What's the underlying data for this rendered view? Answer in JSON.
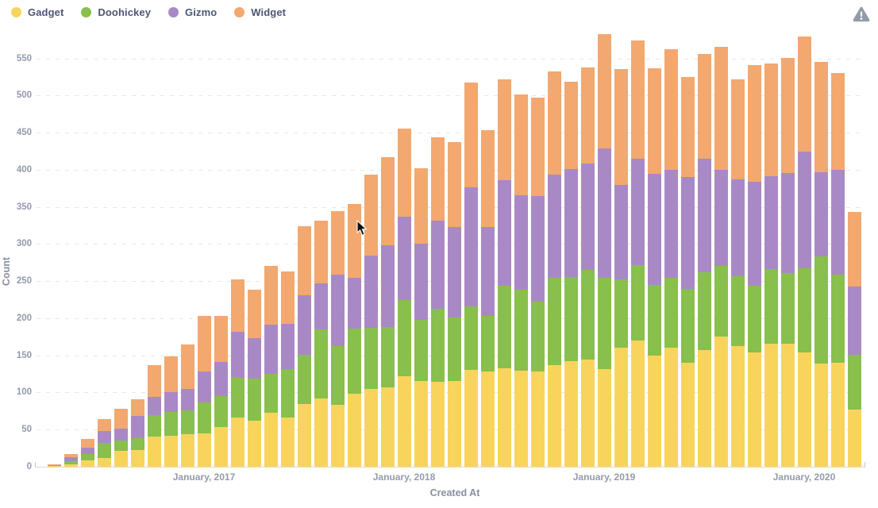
{
  "legend": {
    "items": [
      {
        "label": "Gadget",
        "color": "#F9D45C"
      },
      {
        "label": "Doohickey",
        "color": "#88BF4D"
      },
      {
        "label": "Gizmo",
        "color": "#A989C5"
      },
      {
        "label": "Widget",
        "color": "#F2A86F"
      }
    ]
  },
  "warning": {
    "icon": "alert-triangle",
    "color": "#949AAB"
  },
  "chart_data": {
    "type": "bar",
    "stacked": true,
    "title": "",
    "xlabel": "Created At",
    "ylabel": "Count",
    "grid": "horizontal-dashed",
    "legend_position": "top-left",
    "ylim": [
      0,
      586
    ],
    "y_ticks": [
      0,
      50,
      100,
      150,
      200,
      250,
      300,
      350,
      400,
      450,
      500,
      550
    ],
    "x": [
      "2016-04",
      "2016-05",
      "2016-06",
      "2016-07",
      "2016-08",
      "2016-09",
      "2016-10",
      "2016-11",
      "2016-12",
      "2017-01",
      "2017-02",
      "2017-03",
      "2017-04",
      "2017-05",
      "2017-06",
      "2017-07",
      "2017-08",
      "2017-09",
      "2017-10",
      "2017-11",
      "2017-12",
      "2018-01",
      "2018-02",
      "2018-03",
      "2018-04",
      "2018-05",
      "2018-06",
      "2018-07",
      "2018-08",
      "2018-09",
      "2018-10",
      "2018-11",
      "2018-12",
      "2019-01",
      "2019-02",
      "2019-03",
      "2019-04",
      "2019-05",
      "2019-06",
      "2019-07",
      "2019-08",
      "2019-09",
      "2019-10",
      "2019-11",
      "2019-12",
      "2020-01",
      "2020-02",
      "2020-03",
      "2020-04"
    ],
    "x_tick_labels": [
      {
        "label": "January, 2017",
        "index": 9
      },
      {
        "label": "January, 2018",
        "index": 21
      },
      {
        "label": "January, 2019",
        "index": 33
      },
      {
        "label": "January, 2020",
        "index": 45
      }
    ],
    "series": [
      {
        "name": "Gadget",
        "color": "#F9D45C",
        "values": [
          1,
          3,
          9,
          12,
          21,
          22,
          41,
          42,
          44,
          45,
          53,
          66,
          62,
          73,
          66,
          85,
          92,
          83,
          98,
          105,
          107,
          122,
          116,
          114,
          115,
          130,
          128,
          133,
          129,
          128,
          137,
          142,
          144,
          131,
          160,
          170,
          150,
          160,
          140,
          157,
          175,
          162,
          154,
          166,
          166,
          154,
          139,
          140,
          77
        ]
      },
      {
        "name": "Doohickey",
        "color": "#88BF4D",
        "values": [
          1,
          4,
          8,
          20,
          14,
          16,
          28,
          32,
          32,
          42,
          42,
          54,
          57,
          52,
          66,
          66,
          93,
          80,
          88,
          82,
          81,
          103,
          82,
          99,
          86,
          86,
          75,
          111,
          109,
          94,
          117,
          114,
          121,
          123,
          92,
          102,
          95,
          95,
          100,
          105,
          95,
          95,
          90,
          100,
          95,
          113,
          144,
          119,
          74
        ]
      },
      {
        "name": "Gizmo",
        "color": "#A989C5",
        "values": [
          0,
          6,
          9,
          16,
          16,
          30,
          25,
          27,
          29,
          41,
          46,
          62,
          54,
          66,
          60,
          80,
          62,
          96,
          68,
          97,
          110,
          112,
          103,
          119,
          122,
          160,
          120,
          142,
          128,
          143,
          139,
          145,
          144,
          175,
          128,
          143,
          150,
          145,
          150,
          153,
          130,
          130,
          140,
          125,
          135,
          157,
          114,
          141,
          92
        ]
      },
      {
        "name": "Widget",
        "color": "#F2A86F",
        "values": [
          1,
          4,
          12,
          16,
          27,
          23,
          43,
          48,
          60,
          75,
          62,
          70,
          65,
          80,
          71,
          93,
          85,
          85,
          100,
          109,
          119,
          119,
          101,
          112,
          114,
          142,
          130,
          136,
          135,
          132,
          139,
          118,
          129,
          154,
          156,
          159,
          142,
          162,
          135,
          141,
          166,
          135,
          157,
          152,
          155,
          155,
          148,
          130,
          100
        ]
      }
    ],
    "totals": [
      3,
      17,
      38,
      64,
      78,
      91,
      137,
      149,
      165,
      203,
      203,
      252,
      238,
      271,
      263,
      324,
      332,
      344,
      354,
      393,
      417,
      456,
      402,
      444,
      437,
      518,
      453,
      522,
      501,
      497,
      532,
      519,
      538,
      583,
      536,
      574,
      537,
      562,
      525,
      556,
      566,
      522,
      541,
      543,
      551,
      579,
      545,
      530,
      343
    ]
  }
}
